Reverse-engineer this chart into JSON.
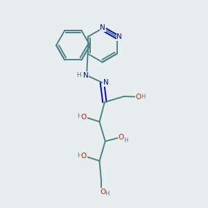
{
  "bg_color": "#e8edf0",
  "bond_color": "#4a8080",
  "n_color": "#0000cc",
  "o_color": "#cc2200",
  "font_size": 7.0,
  "line_width": 1.4,
  "figsize": [
    3.0,
    3.0
  ],
  "dpi": 100,
  "xlim": [
    0,
    10
  ],
  "ylim": [
    0,
    10
  ]
}
